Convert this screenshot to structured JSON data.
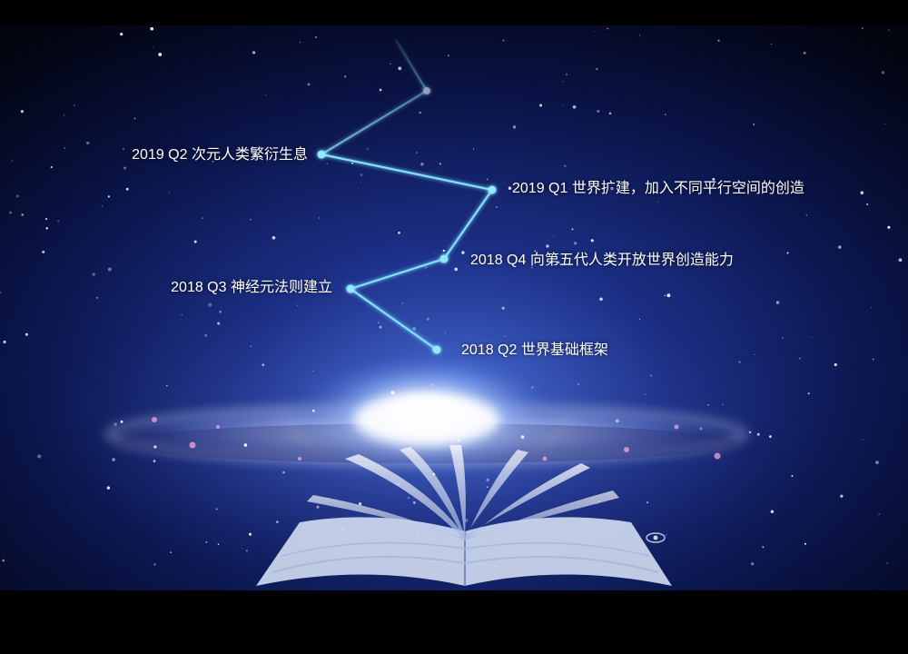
{
  "colors": {
    "background": "#000000",
    "timeline_line": "#7fe3ff",
    "timeline_node": "#8fe9ff",
    "label_text": "#ffffff"
  },
  "timeline": {
    "milestones": [
      {
        "period": "2019 Q2",
        "title": "次元人类繁衍生息"
      },
      {
        "period": "2019 Q1",
        "title": "世界扩建，加入不同平行空间的创造"
      },
      {
        "period": "2018 Q4",
        "title": "向第五代人类开放世界创造能力"
      },
      {
        "period": "2018 Q3",
        "title": "神经元法则建立"
      },
      {
        "period": "2018 Q2",
        "title": "世界基础框架"
      }
    ]
  },
  "scene": {
    "background_image": "galaxy above an open book"
  }
}
